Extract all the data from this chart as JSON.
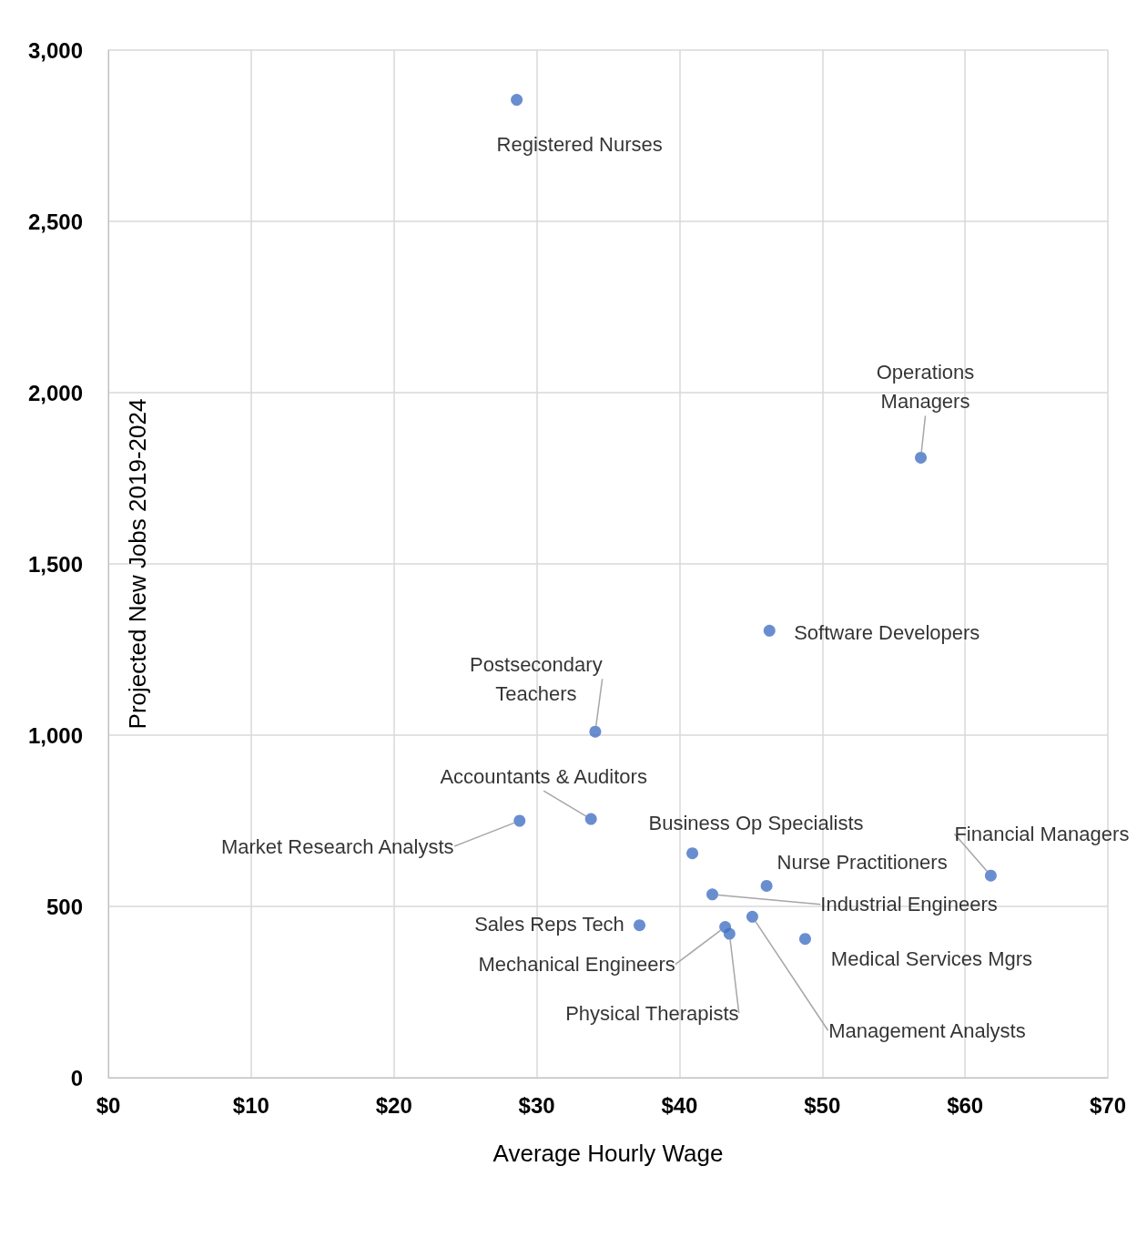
{
  "chart_data": {
    "type": "scatter",
    "xlabel": "Average Hourly Wage",
    "ylabel": "Projected New Jobs 2019-2024",
    "x": [
      28.6,
      56.9,
      46.3,
      34.1,
      33.8,
      28.8,
      40.9,
      46.1,
      61.8,
      42.3,
      37.2,
      43.2,
      43.5,
      45.1,
      48.8
    ],
    "values": [
      2855,
      1810,
      1305,
      1010,
      755,
      750,
      655,
      560,
      590,
      535,
      445,
      440,
      420,
      470,
      405
    ],
    "color": "#4472c4",
    "marker": "circle",
    "grid": true,
    "xlim": [
      0,
      70
    ],
    "xticks": [
      {
        "value": 0,
        "label": "$0"
      },
      {
        "value": 10,
        "label": "$10"
      },
      {
        "value": 20,
        "label": "$20"
      },
      {
        "value": 30,
        "label": "$30"
      },
      {
        "value": 40,
        "label": "$40"
      },
      {
        "value": 50,
        "label": "$50"
      },
      {
        "value": 60,
        "label": "$60"
      },
      {
        "value": 70,
        "label": "$70"
      }
    ],
    "ylim": [
      0,
      3000
    ],
    "yticks": [
      0,
      500,
      {
        "value": 1000,
        "label": "1,000"
      },
      {
        "value": 1500,
        "label": "1,500"
      },
      {
        "value": 2000,
        "label": "2,000"
      },
      {
        "value": 2500,
        "label": "2,500"
      },
      {
        "value": 3000,
        "label": "3,000"
      }
    ],
    "annotations": [
      {
        "text": "Registered Nurses",
        "x": 28.6,
        "y": 2855
      },
      {
        "text": "Operations\nManagers",
        "x": 56.9,
        "y": 1810
      },
      {
        "text": "Software Developers",
        "x": 46.3,
        "y": 1305
      },
      {
        "text": "Postsecondary\nTeachers",
        "x": 34.1,
        "y": 1010
      },
      {
        "text": "Accountants & Auditors",
        "x": 33.8,
        "y": 755
      },
      {
        "text": "Market Research Analysts",
        "x": 28.8,
        "y": 750
      },
      {
        "text": "Business Op Specialists",
        "x": 40.9,
        "y": 655
      },
      {
        "text": "Nurse Practitioners",
        "x": 46.1,
        "y": 560
      },
      {
        "text": "Financial Managers",
        "x": 61.8,
        "y": 590
      },
      {
        "text": "Industrial Engineers",
        "x": 42.3,
        "y": 535
      },
      {
        "text": "Sales Reps Tech",
        "x": 37.2,
        "y": 445
      },
      {
        "text": "Mechanical Engineers",
        "x": 43.2,
        "y": 440
      },
      {
        "text": "Physical Therapists",
        "x": 43.5,
        "y": 420
      },
      {
        "text": "Management Analysts",
        "x": 45.1,
        "y": 470
      },
      {
        "text": "Medical Services Mgrs",
        "x": 48.8,
        "y": 405
      }
    ]
  }
}
